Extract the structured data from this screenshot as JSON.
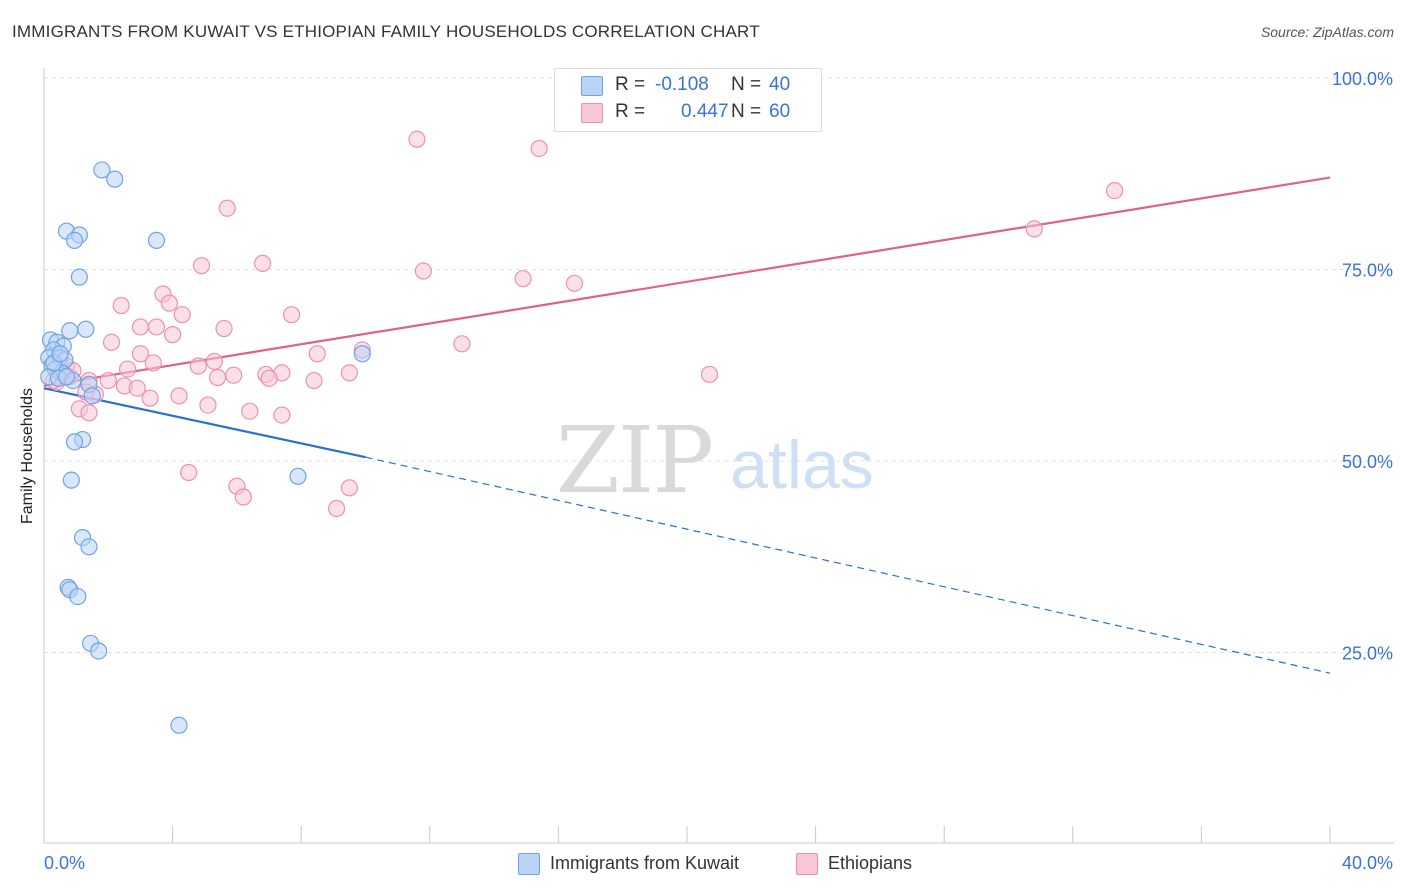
{
  "title": "IMMIGRANTS FROM KUWAIT VS ETHIOPIAN FAMILY HOUSEHOLDS CORRELATION CHART",
  "source": "Source: ZipAtlas.com",
  "watermark": {
    "zip": "ZIP",
    "atlas": "atlas"
  },
  "legend": {
    "r_label": "R =",
    "n_label": "N =",
    "series": [
      {
        "r": "-0.108",
        "n": "40"
      },
      {
        "r": "0.447",
        "n": "60"
      }
    ]
  },
  "chart_data": {
    "type": "scatter",
    "title": "IMMIGRANTS FROM KUWAIT VS ETHIOPIAN FAMILY HOUSEHOLDS CORRELATION CHART",
    "xlabel": "",
    "ylabel": "Family Households",
    "xlim": [
      0,
      40
    ],
    "ylim": [
      0,
      100
    ],
    "x_tick_labels": [
      {
        "value": 0,
        "label": "0.0%"
      },
      {
        "value": 40,
        "label": "40.0%"
      }
    ],
    "y_tick_labels": [
      {
        "value": 100,
        "label": "100.0%"
      },
      {
        "value": 75,
        "label": "75.0%"
      },
      {
        "value": 50,
        "label": "50.0%"
      },
      {
        "value": 25,
        "label": "25.0%"
      }
    ],
    "legend_position": "top-center",
    "series": [
      {
        "name": "Immigrants from Kuwait",
        "color": "#6fa3e8",
        "fill": "#b9d3f5",
        "line_color": "#2b6fd0",
        "trend": {
          "x0": 0,
          "y0": 59.5,
          "x1": 10,
          "y1": 50.5,
          "extend_to": 40,
          "extend_y": 22.3
        },
        "points": [
          {
            "x": 1.8,
            "y": 88.0
          },
          {
            "x": 2.2,
            "y": 86.8
          },
          {
            "x": 0.7,
            "y": 80.0
          },
          {
            "x": 1.1,
            "y": 79.5
          },
          {
            "x": 0.95,
            "y": 78.8
          },
          {
            "x": 3.5,
            "y": 78.8
          },
          {
            "x": 1.1,
            "y": 74.0
          },
          {
            "x": 0.8,
            "y": 67.0
          },
          {
            "x": 1.3,
            "y": 67.2
          },
          {
            "x": 0.2,
            "y": 65.8
          },
          {
            "x": 0.4,
            "y": 65.5
          },
          {
            "x": 0.6,
            "y": 65.0
          },
          {
            "x": 0.3,
            "y": 64.5
          },
          {
            "x": 0.15,
            "y": 63.5
          },
          {
            "x": 0.5,
            "y": 63.5
          },
          {
            "x": 0.65,
            "y": 63.2
          },
          {
            "x": 0.25,
            "y": 62.5
          },
          {
            "x": 0.35,
            "y": 62.0
          },
          {
            "x": 0.55,
            "y": 61.5
          },
          {
            "x": 0.15,
            "y": 61.0
          },
          {
            "x": 0.45,
            "y": 60.8
          },
          {
            "x": 0.9,
            "y": 60.5
          },
          {
            "x": 1.4,
            "y": 60.0
          },
          {
            "x": 1.5,
            "y": 58.5
          },
          {
            "x": 9.9,
            "y": 64.0
          },
          {
            "x": 1.2,
            "y": 52.8
          },
          {
            "x": 0.95,
            "y": 52.5
          },
          {
            "x": 0.85,
            "y": 47.5
          },
          {
            "x": 7.9,
            "y": 48.0
          },
          {
            "x": 1.2,
            "y": 40.0
          },
          {
            "x": 1.4,
            "y": 38.8
          },
          {
            "x": 0.75,
            "y": 33.5
          },
          {
            "x": 0.8,
            "y": 33.2
          },
          {
            "x": 1.05,
            "y": 32.3
          },
          {
            "x": 1.45,
            "y": 26.2
          },
          {
            "x": 1.7,
            "y": 25.2
          },
          {
            "x": 4.2,
            "y": 15.5
          },
          {
            "x": 0.3,
            "y": 62.8
          },
          {
            "x": 0.7,
            "y": 61.0
          },
          {
            "x": 0.5,
            "y": 64.0
          }
        ]
      },
      {
        "name": "Ethiopians",
        "color": "#ef8fb0",
        "fill": "#f8c6d7",
        "line_color": "#e0608e",
        "trend": {
          "x0": 0,
          "y0": 59.8,
          "x1": 40,
          "y1": 87.0
        },
        "points": [
          {
            "x": 11.6,
            "y": 92.0
          },
          {
            "x": 15.4,
            "y": 90.8
          },
          {
            "x": 33.3,
            "y": 85.3
          },
          {
            "x": 30.8,
            "y": 80.3
          },
          {
            "x": 5.7,
            "y": 83.0
          },
          {
            "x": 4.9,
            "y": 75.5
          },
          {
            "x": 6.8,
            "y": 75.8
          },
          {
            "x": 11.8,
            "y": 74.8
          },
          {
            "x": 14.9,
            "y": 73.8
          },
          {
            "x": 16.5,
            "y": 73.2
          },
          {
            "x": 3.7,
            "y": 71.8
          },
          {
            "x": 2.4,
            "y": 70.3
          },
          {
            "x": 3.9,
            "y": 70.6
          },
          {
            "x": 4.3,
            "y": 69.1
          },
          {
            "x": 7.7,
            "y": 69.1
          },
          {
            "x": 3.0,
            "y": 67.5
          },
          {
            "x": 3.5,
            "y": 67.5
          },
          {
            "x": 4.0,
            "y": 66.5
          },
          {
            "x": 5.6,
            "y": 67.3
          },
          {
            "x": 2.1,
            "y": 65.5
          },
          {
            "x": 13.0,
            "y": 65.3
          },
          {
            "x": 9.9,
            "y": 64.5
          },
          {
            "x": 3.0,
            "y": 64.0
          },
          {
            "x": 8.5,
            "y": 64.0
          },
          {
            "x": 3.4,
            "y": 62.8
          },
          {
            "x": 5.3,
            "y": 63.0
          },
          {
            "x": 4.8,
            "y": 62.4
          },
          {
            "x": 2.6,
            "y": 62.0
          },
          {
            "x": 7.4,
            "y": 61.5
          },
          {
            "x": 6.9,
            "y": 61.3
          },
          {
            "x": 5.9,
            "y": 61.2
          },
          {
            "x": 9.5,
            "y": 61.5
          },
          {
            "x": 20.7,
            "y": 61.3
          },
          {
            "x": 7.0,
            "y": 60.8
          },
          {
            "x": 5.4,
            "y": 60.9
          },
          {
            "x": 8.4,
            "y": 60.5
          },
          {
            "x": 1.4,
            "y": 60.5
          },
          {
            "x": 2.0,
            "y": 60.5
          },
          {
            "x": 2.5,
            "y": 59.8
          },
          {
            "x": 0.4,
            "y": 60.3
          },
          {
            "x": 0.8,
            "y": 61.0
          },
          {
            "x": 0.7,
            "y": 62.4
          },
          {
            "x": 1.6,
            "y": 58.7
          },
          {
            "x": 4.2,
            "y": 58.5
          },
          {
            "x": 3.3,
            "y": 58.2
          },
          {
            "x": 5.1,
            "y": 57.3
          },
          {
            "x": 1.1,
            "y": 56.8
          },
          {
            "x": 1.4,
            "y": 56.3
          },
          {
            "x": 6.4,
            "y": 56.5
          },
          {
            "x": 7.4,
            "y": 56.0
          },
          {
            "x": 4.5,
            "y": 48.5
          },
          {
            "x": 6.0,
            "y": 46.7
          },
          {
            "x": 6.2,
            "y": 45.3
          },
          {
            "x": 9.5,
            "y": 46.5
          },
          {
            "x": 9.1,
            "y": 43.8
          },
          {
            "x": 0.3,
            "y": 60.5
          },
          {
            "x": 1.3,
            "y": 59.0
          },
          {
            "x": 0.9,
            "y": 61.8
          },
          {
            "x": 2.9,
            "y": 59.5
          },
          {
            "x": 0.6,
            "y": 61.5
          }
        ]
      }
    ]
  }
}
